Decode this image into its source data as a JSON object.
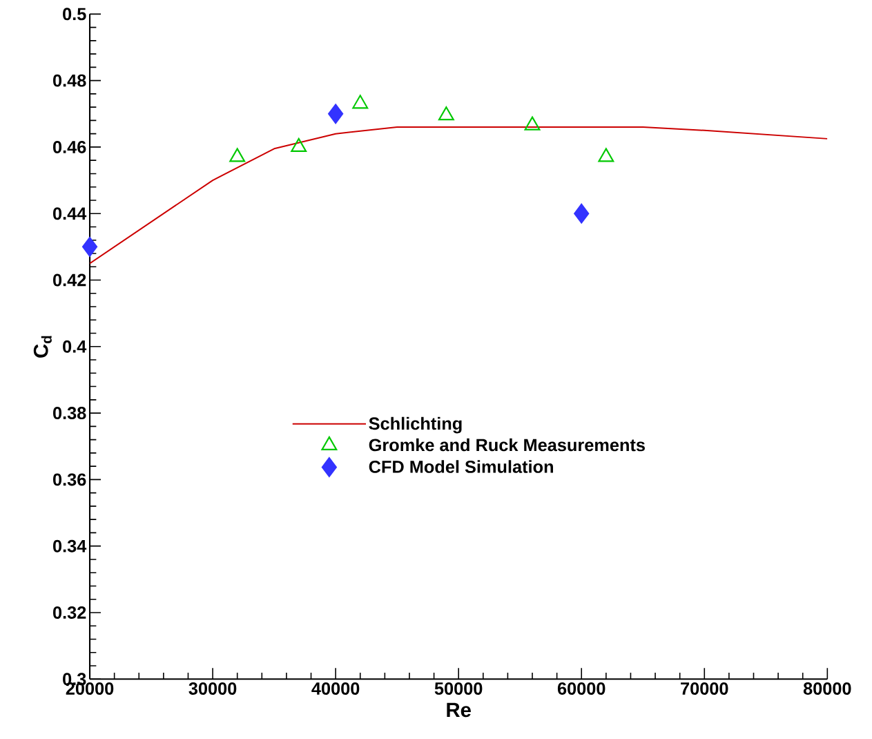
{
  "chart_data": {
    "type": "scatter",
    "xlabel": "Re",
    "ylabel": "C$_{d}$",
    "xlim": [
      20000,
      80000
    ],
    "ylim": [
      0.3,
      0.5
    ],
    "xticks": [
      20000,
      30000,
      40000,
      50000,
      60000,
      70000,
      80000
    ],
    "yticks": [
      0.3,
      0.32,
      0.34,
      0.36,
      0.38,
      0.4,
      0.42,
      0.44,
      0.46,
      0.48,
      0.5
    ],
    "legend": "center right",
    "grid": false,
    "series": [
      {
        "name": "Schlichting",
        "type": "line",
        "color": "#cc0000",
        "marker": "none",
        "x": [
          20000,
          30000,
          35000,
          40000,
          45000,
          65000,
          70000,
          80000
        ],
        "values": [
          0.425,
          0.45,
          0.4595,
          0.464,
          0.466,
          0.466,
          0.465,
          0.4625
        ]
      },
      {
        "name": "Gromke and Ruck Measurements",
        "color": "#00c800",
        "marker": "triangle",
        "x": [
          32000,
          37000,
          42000,
          49000,
          56000,
          62000
        ],
        "values": [
          0.457,
          0.46,
          0.473,
          0.4695,
          0.4665,
          0.457
        ]
      },
      {
        "name": "CFD Model Simulation",
        "color": "#3333ff",
        "marker": "diamond",
        "x": [
          20000,
          40000,
          60000
        ],
        "values": [
          0.43,
          0.47,
          0.44
        ]
      }
    ]
  }
}
